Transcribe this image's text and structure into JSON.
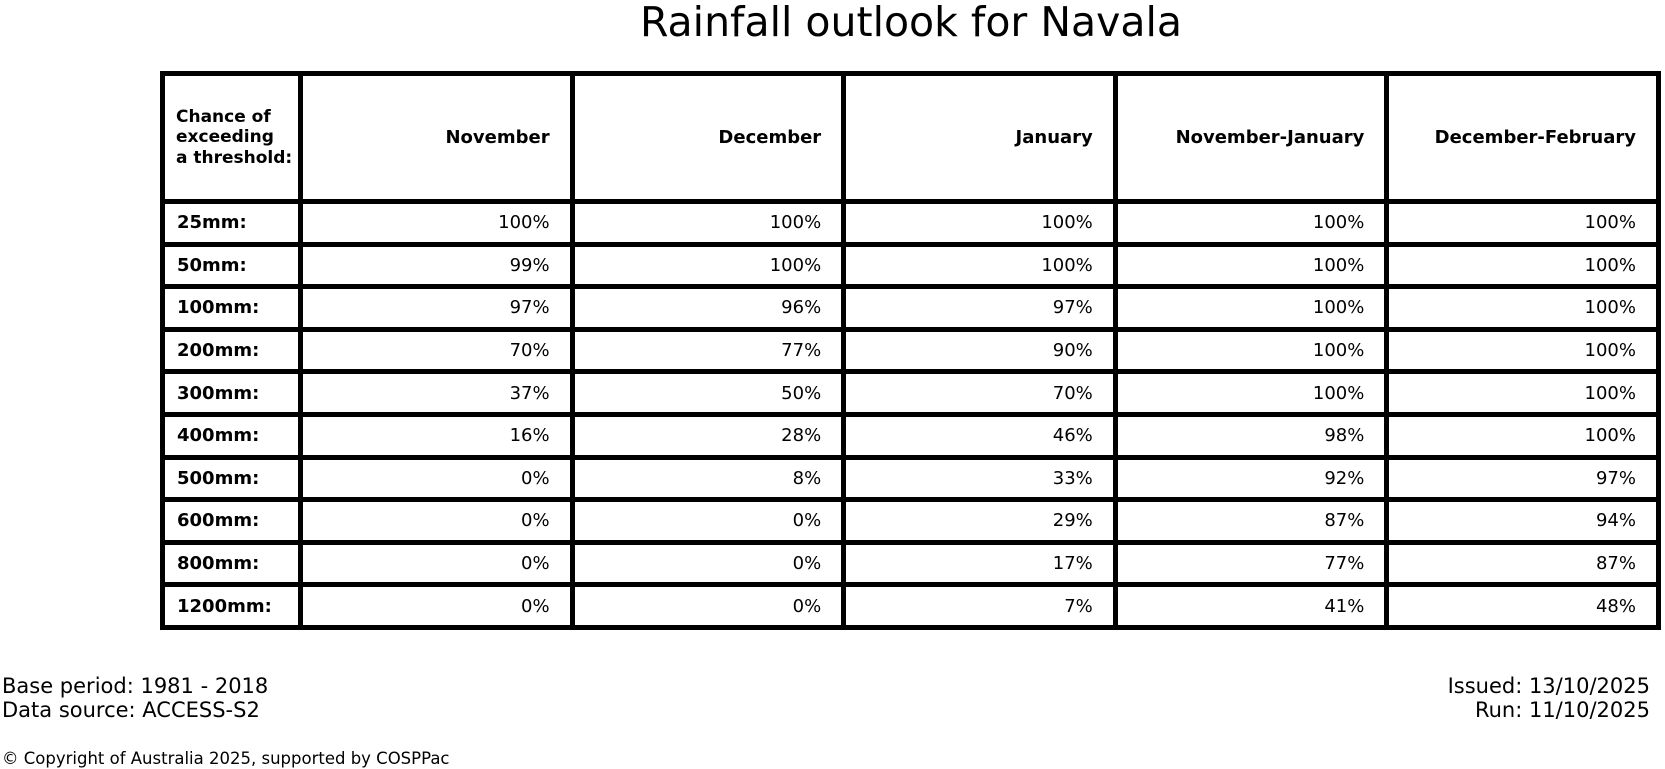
{
  "title": "Rainfall outlook for Navala",
  "chart_data": {
    "type": "table",
    "title": "Rainfall outlook for Navala",
    "corner_label": "Chance of\nexceeding\na threshold:",
    "columns": [
      "November",
      "December",
      "January",
      "November-January",
      "December-February"
    ],
    "rows": [
      {
        "label": "25mm:",
        "values": [
          "100%",
          "100%",
          "100%",
          "100%",
          "100%"
        ]
      },
      {
        "label": "50mm:",
        "values": [
          "99%",
          "100%",
          "100%",
          "100%",
          "100%"
        ]
      },
      {
        "label": "100mm:",
        "values": [
          "97%",
          "96%",
          "97%",
          "100%",
          "100%"
        ]
      },
      {
        "label": "200mm:",
        "values": [
          "70%",
          "77%",
          "90%",
          "100%",
          "100%"
        ]
      },
      {
        "label": "300mm:",
        "values": [
          "37%",
          "50%",
          "70%",
          "100%",
          "100%"
        ]
      },
      {
        "label": "400mm:",
        "values": [
          "16%",
          "28%",
          "46%",
          "98%",
          "100%"
        ]
      },
      {
        "label": "500mm:",
        "values": [
          "0%",
          "8%",
          "33%",
          "92%",
          "97%"
        ]
      },
      {
        "label": "600mm:",
        "values": [
          "0%",
          "0%",
          "29%",
          "87%",
          "94%"
        ]
      },
      {
        "label": "800mm:",
        "values": [
          "0%",
          "0%",
          "17%",
          "77%",
          "87%"
        ]
      },
      {
        "label": "1200mm:",
        "values": [
          "0%",
          "0%",
          "7%",
          "41%",
          "48%"
        ]
      }
    ]
  },
  "footer": {
    "base_period": "Base period: 1981 - 2018",
    "data_source": "Data source: ACCESS-S2",
    "issued": "Issued: 13/10/2025",
    "run": "Run: 11/10/2025",
    "copyright": "© Copyright of Australia 2025, supported by COSPPac"
  },
  "colors": {
    "background": "#ffffff",
    "text": "#000000",
    "border": "#000000"
  }
}
